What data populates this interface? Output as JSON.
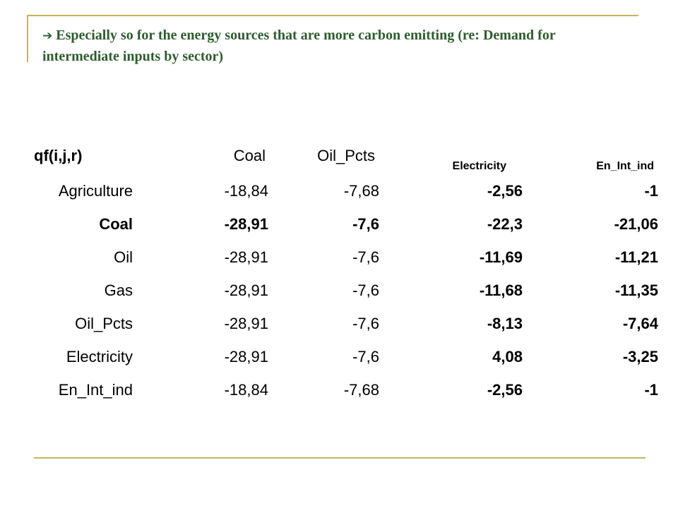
{
  "title": {
    "arrow_icon": "right-arrow-icon",
    "text": "Especially so for the energy sources that are more carbon emitting (re: Demand for intermediate inputs by sector)"
  },
  "table": {
    "headers": [
      "qf(i,j,r)",
      "Coal",
      "Oil_Pcts",
      "Electricity",
      "En_Int_ind"
    ],
    "rows": [
      [
        "Agriculture",
        "-18,84",
        "-7,68",
        "-2,56",
        "-1"
      ],
      [
        "Coal",
        "-28,91",
        "-7,6",
        "-22,3",
        "-21,06"
      ],
      [
        "Oil",
        "-28,91",
        "-7,6",
        "-11,69",
        "-11,21"
      ],
      [
        "Gas",
        "-28,91",
        "-7,6",
        "-11,68",
        "-11,35"
      ],
      [
        "Oil_Pcts",
        "-28,91",
        "-7,6",
        "-8,13",
        "-7,64"
      ],
      [
        "Electricity",
        "-28,91",
        "-7,6",
        "4,08",
        "-3,25"
      ],
      [
        "En_Int_ind",
        "-18,84",
        "-7,68",
        "-2,56",
        "-1"
      ]
    ]
  },
  "colors": {
    "title": "#2e5c2e",
    "rule": "#c9b25a"
  }
}
